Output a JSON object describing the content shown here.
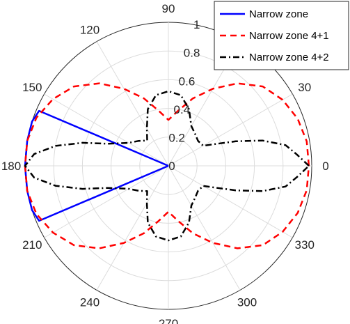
{
  "chart_data": {
    "type": "polar-line",
    "theta_unit": "degrees",
    "theta_ticks": [
      0,
      30,
      60,
      90,
      120,
      150,
      180,
      210,
      240,
      270,
      300,
      330
    ],
    "theta_tick_labels": [
      "0",
      "30",
      "",
      "90",
      "120",
      "150",
      "180",
      "210",
      "240",
      "270",
      "300",
      "330"
    ],
    "r_ticks": [
      0,
      0.2,
      0.4,
      0.6,
      0.8,
      1
    ],
    "r_tick_labels": [
      "0",
      "0.2",
      "0.4",
      "0.6",
      "0.8",
      "1"
    ],
    "r_lim": [
      0,
      1
    ],
    "grid": true,
    "legend_position": "top-right",
    "series": [
      {
        "name": "Narrow zone",
        "color": "#0000ff",
        "dash": "solid",
        "points": [
          [
            0,
            0
          ],
          [
            157,
            0.98
          ],
          [
            162,
            1.0
          ],
          [
            170,
            1.0
          ],
          [
            180,
            1.0
          ],
          [
            190,
            1.0
          ],
          [
            198,
            1.0
          ],
          [
            203,
            0.98
          ],
          [
            0,
            0
          ]
        ]
      },
      {
        "name": "Narrow zone 4+1",
        "color": "#ff0000",
        "dash": "dashed",
        "points": [
          [
            0,
            0.98
          ],
          [
            10,
            0.98
          ],
          [
            20,
            0.96
          ],
          [
            30,
            0.92
          ],
          [
            40,
            0.86
          ],
          [
            50,
            0.75
          ],
          [
            60,
            0.62
          ],
          [
            70,
            0.5
          ],
          [
            80,
            0.39
          ],
          [
            90,
            0.32
          ],
          [
            100,
            0.39
          ],
          [
            110,
            0.5
          ],
          [
            120,
            0.62
          ],
          [
            130,
            0.75
          ],
          [
            140,
            0.86
          ],
          [
            150,
            0.93
          ],
          [
            160,
            0.98
          ],
          [
            170,
            1.0
          ],
          [
            180,
            1.0
          ],
          [
            190,
            1.0
          ],
          [
            200,
            0.98
          ],
          [
            210,
            0.93
          ],
          [
            220,
            0.86
          ],
          [
            230,
            0.75
          ],
          [
            240,
            0.62
          ],
          [
            250,
            0.5
          ],
          [
            260,
            0.39
          ],
          [
            270,
            0.32
          ],
          [
            280,
            0.39
          ],
          [
            290,
            0.5
          ],
          [
            300,
            0.62
          ],
          [
            310,
            0.75
          ],
          [
            320,
            0.86
          ],
          [
            330,
            0.92
          ],
          [
            340,
            0.96
          ],
          [
            350,
            0.98
          ],
          [
            360,
            0.98
          ]
        ]
      },
      {
        "name": "Narrow zone 4+2",
        "color": "#000000",
        "dash": "dashdot",
        "points": [
          [
            0,
            0.98
          ],
          [
            5,
            0.9
          ],
          [
            10,
            0.83
          ],
          [
            15,
            0.68
          ],
          [
            20,
            0.5
          ],
          [
            25,
            0.36
          ],
          [
            30,
            0.28
          ],
          [
            40,
            0.27
          ],
          [
            50,
            0.29
          ],
          [
            60,
            0.32
          ],
          [
            70,
            0.42
          ],
          [
            80,
            0.5
          ],
          [
            90,
            0.52
          ],
          [
            100,
            0.5
          ],
          [
            110,
            0.42
          ],
          [
            120,
            0.3
          ],
          [
            130,
            0.23
          ],
          [
            140,
            0.27
          ],
          [
            150,
            0.32
          ],
          [
            160,
            0.45
          ],
          [
            165,
            0.62
          ],
          [
            170,
            0.8
          ],
          [
            175,
            0.94
          ],
          [
            180,
            1.0
          ],
          [
            185,
            0.94
          ],
          [
            190,
            0.8
          ],
          [
            195,
            0.62
          ],
          [
            200,
            0.45
          ],
          [
            210,
            0.32
          ],
          [
            220,
            0.27
          ],
          [
            230,
            0.23
          ],
          [
            240,
            0.3
          ],
          [
            250,
            0.42
          ],
          [
            260,
            0.5
          ],
          [
            270,
            0.52
          ],
          [
            280,
            0.5
          ],
          [
            290,
            0.42
          ],
          [
            300,
            0.32
          ],
          [
            310,
            0.29
          ],
          [
            320,
            0.27
          ],
          [
            330,
            0.28
          ],
          [
            335,
            0.36
          ],
          [
            340,
            0.5
          ],
          [
            345,
            0.68
          ],
          [
            350,
            0.83
          ],
          [
            355,
            0.9
          ],
          [
            360,
            0.98
          ]
        ]
      }
    ]
  }
}
